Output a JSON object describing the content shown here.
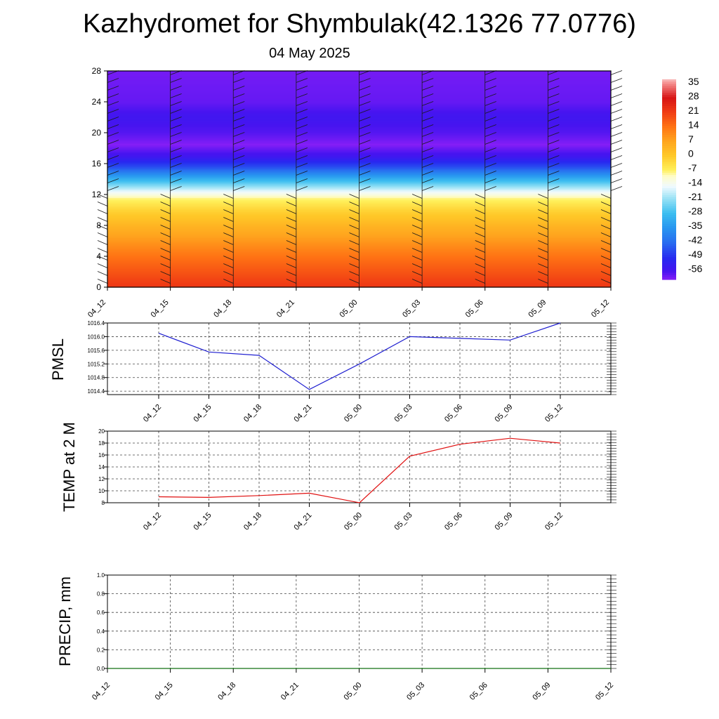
{
  "header": {
    "title": "Kazhydromet for Shymbulak(42.1326 77.0776)",
    "date": "04 May 2025"
  },
  "colors": {
    "pmsl_line": "#1f1fd0",
    "temp_line": "#e01010",
    "precip_line": "#107010",
    "grid": "#555555"
  },
  "chart_data": [
    {
      "type": "heatmap",
      "x_ticks": [
        "04_12",
        "04_15",
        "04_18",
        "04_21",
        "05_00",
        "05_03",
        "05_06",
        "05_09",
        "05_12"
      ],
      "y_ticks": [
        "0",
        "4",
        "8",
        "12",
        "16",
        "20",
        "24",
        "28"
      ],
      "ylim": [
        0,
        28
      ],
      "colorbar": {
        "labels": [
          "35",
          "28",
          "21",
          "14",
          "7",
          "0",
          "-7",
          "-14",
          "-21",
          "-28",
          "-35",
          "-42",
          "-49",
          "-56"
        ],
        "range": [
          -60,
          37
        ]
      },
      "profile": [
        {
          "level": 0,
          "value": 22
        },
        {
          "level": 2,
          "value": 18
        },
        {
          "level": 4,
          "value": 14
        },
        {
          "level": 6,
          "value": 9
        },
        {
          "level": 8,
          "value": 4
        },
        {
          "level": 10,
          "value": -2
        },
        {
          "level": 11.5,
          "value": -8
        },
        {
          "level": 12.5,
          "value": -16
        },
        {
          "level": 14,
          "value": -30
        },
        {
          "level": 15.5,
          "value": -45
        },
        {
          "level": 17,
          "value": -55
        },
        {
          "level": 18.5,
          "value": -60
        },
        {
          "level": 20,
          "value": -57
        },
        {
          "level": 22,
          "value": -55
        },
        {
          "level": 24,
          "value": -58
        },
        {
          "level": 28,
          "value": -59
        }
      ]
    },
    {
      "type": "line",
      "ylabel": "PMSL",
      "categories": [
        "04_12",
        "04_15",
        "04_18",
        "04_21",
        "05_00",
        "05_03",
        "05_06",
        "05_09",
        "05_12"
      ],
      "y_ticks": [
        "1014.4",
        "1014.8",
        "1015.2",
        "1015.6",
        "1016.0",
        "1016.4"
      ],
      "ylim": [
        1014.3,
        1016.4
      ],
      "series": [
        {
          "values": [
            1016.1,
            1015.55,
            1015.45,
            1014.45,
            1015.2,
            1016.0,
            1015.95,
            1015.9,
            1016.4
          ]
        }
      ]
    },
    {
      "type": "line",
      "ylabel": "TEMP at 2 M",
      "categories": [
        "04_12",
        "04_15",
        "04_18",
        "04_21",
        "05_00",
        "05_03",
        "05_06",
        "05_09",
        "05_12"
      ],
      "y_ticks": [
        "8",
        "10",
        "12",
        "14",
        "16",
        "18",
        "20"
      ],
      "ylim": [
        8,
        20
      ],
      "series": [
        {
          "values": [
            9.0,
            8.9,
            9.2,
            9.6,
            8.0,
            15.8,
            17.8,
            18.8,
            18.0
          ]
        }
      ]
    },
    {
      "type": "line",
      "ylabel": "PRECIP, mm",
      "x_ticks": [
        "04_12",
        "04_15",
        "04_18",
        "04_21",
        "05_00",
        "05_03",
        "05_06",
        "05_09",
        "05_12"
      ],
      "y_ticks": [
        "0.0",
        "0.2",
        "0.4",
        "0.6",
        "0.8",
        "1.0"
      ],
      "ylim": [
        0,
        1
      ],
      "series": [
        {
          "values": [
            0,
            0,
            0,
            0,
            0,
            0,
            0,
            0,
            0
          ]
        }
      ]
    }
  ]
}
